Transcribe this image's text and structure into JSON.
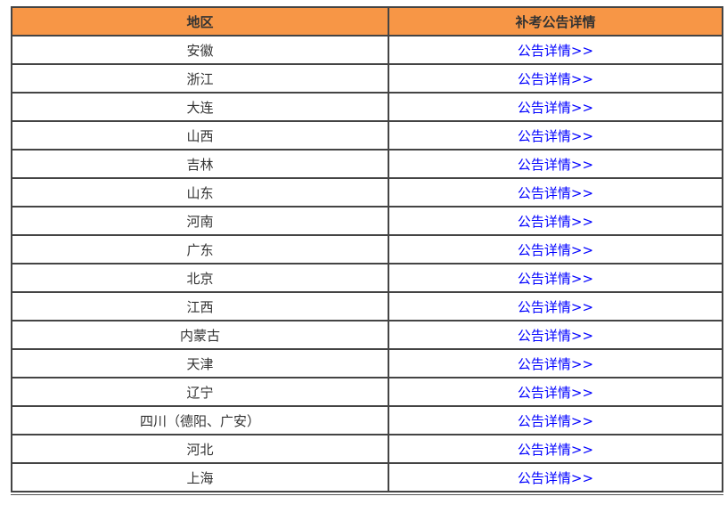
{
  "header": {
    "region": "地区",
    "details": "补考公告详情"
  },
  "colors": {
    "header_bg": "#f79646",
    "link": "#0000ff"
  },
  "rows": [
    {
      "region": "安徽",
      "link": "公告详情>>"
    },
    {
      "region": "浙江",
      "link": "公告详情>>"
    },
    {
      "region": "大连",
      "link": "公告详情>>"
    },
    {
      "region": "山西",
      "link": "公告详情>>"
    },
    {
      "region": "吉林",
      "link": "公告详情>>"
    },
    {
      "region": "山东",
      "link": "公告详情>>"
    },
    {
      "region": "河南",
      "link": "公告详情>>"
    },
    {
      "region": "广东",
      "link": "公告详情>>"
    },
    {
      "region": "北京",
      "link": "公告详情>>"
    },
    {
      "region": "江西",
      "link": "公告详情>>"
    },
    {
      "region": "内蒙古",
      "link": "公告详情>>"
    },
    {
      "region": "天津",
      "link": "公告详情>>"
    },
    {
      "region": "辽宁",
      "link": "公告详情>>"
    },
    {
      "region": "四川（德阳、广安）",
      "link": "公告详情>>"
    },
    {
      "region": "河北",
      "link": "公告详情>>"
    },
    {
      "region": "上海",
      "link": "公告详情>>"
    }
  ]
}
